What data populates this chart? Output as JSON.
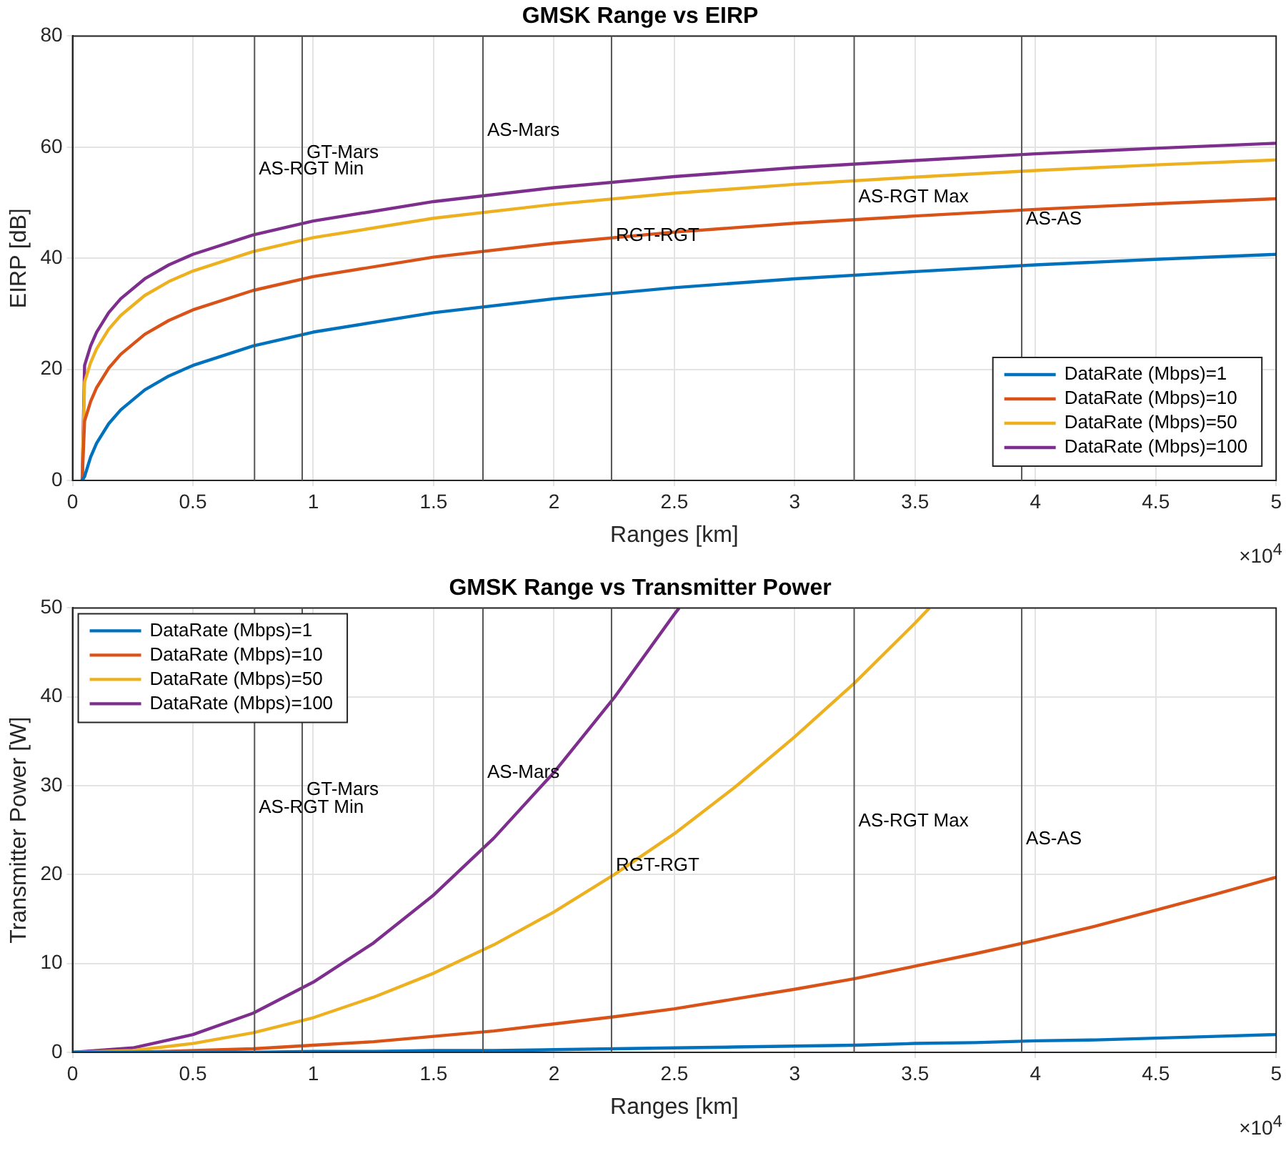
{
  "chart_data": [
    {
      "type": "line",
      "title": "GMSK Range vs EIRP",
      "xlabel": "Ranges [km]",
      "ylabel": "EIRP [dB]",
      "xlim": [
        0,
        5
      ],
      "xticks": [
        0,
        0.5,
        1,
        1.5,
        2,
        2.5,
        3,
        3.5,
        4,
        4.5,
        5
      ],
      "ylim": [
        0,
        80
      ],
      "yticks": [
        0,
        20,
        40,
        60,
        80
      ],
      "grid": true,
      "legend": "bottom right",
      "line_style": "solid",
      "marker": "none",
      "x": [
        0.04,
        0.05,
        0.075,
        0.1,
        0.15,
        0.2,
        0.3,
        0.4,
        0.5,
        0.75,
        1,
        1.5,
        2,
        2.5,
        3,
        3.5,
        4,
        4.5,
        5
      ],
      "series": [
        {
          "name": "DataRate (Mbps)=1",
          "color": "#0072bd",
          "values": [
            0,
            0.7,
            4.2,
            6.7,
            10.2,
            12.7,
            16.3,
            18.8,
            20.7,
            24.2,
            26.7,
            30.2,
            32.7,
            34.7,
            36.3,
            37.6,
            38.8,
            39.8,
            40.7
          ]
        },
        {
          "name": "DataRate (Mbps)=10",
          "color": "#d95319",
          "values": [
            0,
            10.7,
            14.2,
            16.7,
            20.2,
            22.7,
            26.3,
            28.8,
            30.7,
            34.2,
            36.7,
            40.2,
            42.7,
            44.7,
            46.3,
            47.6,
            48.8,
            49.8,
            50.7
          ]
        },
        {
          "name": "DataRate (Mbps)=50",
          "color": "#edb120",
          "values": [
            0,
            17.7,
            21.2,
            23.7,
            27.2,
            29.7,
            33.3,
            35.8,
            37.7,
            41.2,
            43.7,
            47.2,
            49.7,
            51.7,
            53.3,
            54.6,
            55.8,
            56.8,
            57.7
          ]
        },
        {
          "name": "DataRate (Mbps)=100",
          "color": "#7e2f8e",
          "values": [
            0,
            20.7,
            24.2,
            26.7,
            30.2,
            32.7,
            36.3,
            38.8,
            40.7,
            44.2,
            46.7,
            50.2,
            52.7,
            54.7,
            56.3,
            57.6,
            58.8,
            59.8,
            60.7
          ]
        }
      ],
      "ref_lines": [
        {
          "axis": "x",
          "value": 0.756,
          "color": "#555555"
        },
        {
          "axis": "x",
          "value": 0.954,
          "color": "#555555"
        },
        {
          "axis": "x",
          "value": 1.705,
          "color": "#555555"
        },
        {
          "axis": "x",
          "value": 2.239,
          "color": "#555555"
        },
        {
          "axis": "x",
          "value": 3.247,
          "color": "#555555"
        },
        {
          "axis": "x",
          "value": 3.943,
          "color": "#555555"
        }
      ],
      "annotations": [
        {
          "text": "AS-RGT Min",
          "x": 0.756,
          "y": 56
        },
        {
          "text": "GT-Mars",
          "x": 0.954,
          "y": 59
        },
        {
          "text": "AS-Mars",
          "x": 1.705,
          "y": 63
        },
        {
          "text": "RGT-RGT",
          "x": 2.239,
          "y": 44
        },
        {
          "text": "AS-RGT Max",
          "x": 3.247,
          "y": 51
        },
        {
          "text": "AS-AS",
          "x": 3.943,
          "y": 47
        },
        "×10$^{4}$"
      ]
    },
    {
      "type": "line",
      "title": "GMSK Range vs Transmitter Power",
      "xlabel": "Ranges [km]",
      "ylabel": "Transmitter Power [W]",
      "xlim": [
        0,
        5
      ],
      "xticks": [
        0,
        0.5,
        1,
        1.5,
        2,
        2.5,
        3,
        3.5,
        4,
        4.5,
        5
      ],
      "ylim": [
        0,
        50
      ],
      "yticks": [
        0,
        10,
        20,
        30,
        40,
        50
      ],
      "grid": true,
      "legend": "top left",
      "line_style": "solid",
      "marker": "none",
      "x": [
        0,
        0.25,
        0.5,
        0.75,
        1,
        1.25,
        1.5,
        1.75,
        2,
        2.25,
        2.5,
        2.75,
        3,
        3.25,
        3.5,
        3.75,
        4,
        4.25,
        4.5,
        4.75,
        5
      ],
      "series": [
        {
          "name": "DataRate (Mbps)=1",
          "color": "#0072bd",
          "values": [
            0,
            0,
            0,
            0,
            0.1,
            0.1,
            0.2,
            0.2,
            0.3,
            0.4,
            0.5,
            0.6,
            0.7,
            0.8,
            1,
            1.1,
            1.3,
            1.4,
            1.6,
            1.8,
            2
          ]
        },
        {
          "name": "DataRate (Mbps)=10",
          "color": "#d95319",
          "values": [
            0,
            0,
            0.2,
            0.4,
            0.8,
            1.2,
            1.8,
            2.4,
            3.2,
            4,
            4.9,
            6,
            7.1,
            8.3,
            9.7,
            11.1,
            12.6,
            14.2,
            16,
            17.8,
            19.7
          ]
        },
        {
          "name": "DataRate (Mbps)=50",
          "color": "#edb120",
          "x": [
            0,
            0.25,
            0.5,
            0.75,
            1,
            1.25,
            1.5,
            1.75,
            2,
            2.25,
            2.5,
            2.75,
            3,
            3.25,
            3.5,
            3.56
          ],
          "values": [
            0,
            0.2,
            1,
            2.2,
            3.9,
            6.2,
            8.9,
            12.1,
            15.8,
            20,
            24.6,
            29.8,
            35.5,
            41.6,
            48.3,
            50
          ]
        },
        {
          "name": "DataRate (Mbps)=100",
          "color": "#7e2f8e",
          "x": [
            0,
            0.25,
            0.5,
            0.75,
            1,
            1.25,
            1.5,
            1.75,
            2,
            2.25,
            2.5,
            2.52
          ],
          "values": [
            0,
            0.5,
            2,
            4.4,
            7.9,
            12.3,
            17.7,
            24.1,
            31.5,
            39.9,
            49.3,
            50
          ]
        }
      ],
      "ref_lines": [
        {
          "axis": "x",
          "value": 0.756,
          "color": "#555555"
        },
        {
          "axis": "x",
          "value": 0.954,
          "color": "#555555"
        },
        {
          "axis": "x",
          "value": 1.705,
          "color": "#555555"
        },
        {
          "axis": "x",
          "value": 2.239,
          "color": "#555555"
        },
        {
          "axis": "x",
          "value": 3.247,
          "color": "#555555"
        },
        {
          "axis": "x",
          "value": 3.943,
          "color": "#555555"
        }
      ],
      "annotations": [
        {
          "text": "AS-RGT Min",
          "x": 0.756,
          "y": 27.5
        },
        {
          "text": "GT-Mars",
          "x": 0.954,
          "y": 29.5
        },
        {
          "text": "AS-Mars",
          "x": 1.705,
          "y": 31.5
        },
        {
          "text": "RGT-RGT",
          "x": 2.239,
          "y": 21
        },
        {
          "text": "AS-RGT Max",
          "x": 3.247,
          "y": 26
        },
        {
          "text": "AS-AS",
          "x": 3.943,
          "y": 24
        },
        "×10$^{4}$"
      ]
    }
  ]
}
